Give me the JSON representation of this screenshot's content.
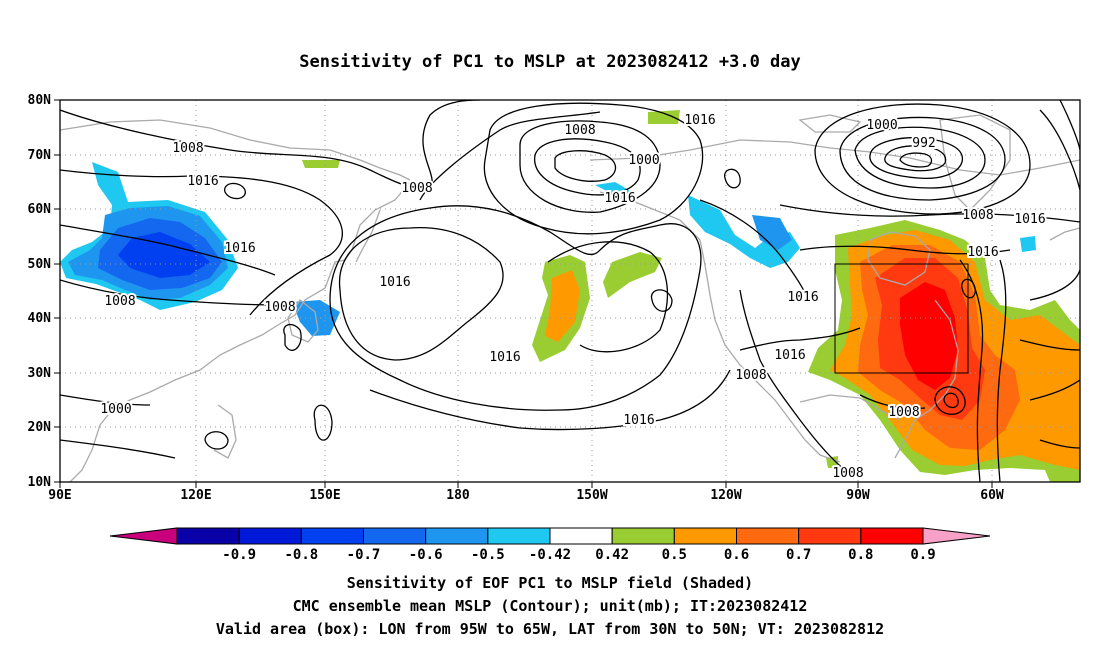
{
  "title": "Sensitivity of PC1 to MSLP at 2023082412 +3.0 day",
  "lat_ticks": [
    "80N",
    "70N",
    "60N",
    "50N",
    "40N",
    "30N",
    "20N",
    "10N"
  ],
  "lon_ticks": [
    "90E",
    "120E",
    "150E",
    "180",
    "150W",
    "120W",
    "90W",
    "60W"
  ],
  "contour_labels": [
    "1008",
    "1016",
    "1016",
    "1008",
    "1008",
    "1000",
    "1008",
    "1016",
    "1008",
    "1000",
    "1016",
    "1016",
    "1016",
    "1000",
    "992",
    "1008",
    "1016",
    "1016",
    "1016",
    "1016",
    "1016",
    "1008",
    "1008",
    "1008"
  ],
  "colorbar": {
    "labels": [
      "-0.9",
      "-0.8",
      "-0.7",
      "-0.6",
      "-0.5",
      "-0.42",
      "0.42",
      "0.5",
      "0.6",
      "0.7",
      "0.8",
      "0.9"
    ],
    "colors": {
      "below_min": "#c8007c",
      "bins": [
        "#0a00a8",
        "#0018d8",
        "#0040f0",
        "#1468f0",
        "#1e96f0",
        "#1ec8f0",
        "#ffffff",
        "#9acd32",
        "#ff9900",
        "#ff6a10",
        "#ff3a10",
        "#ff0000"
      ],
      "above_max": "#f7a0c8"
    }
  },
  "captions": [
    "Sensitivity of EOF PC1 to MSLP field (Shaded)",
    "CMC ensemble mean MSLP (Contour); unit(mb); IT:2023082412",
    "Valid area (box): LON from 95W to 65W, LAT from 30N to 50N; VT: 2023082812"
  ],
  "colors": {
    "contour": "#000000",
    "coast": "#aaaaaa",
    "grid": "#999999"
  }
}
